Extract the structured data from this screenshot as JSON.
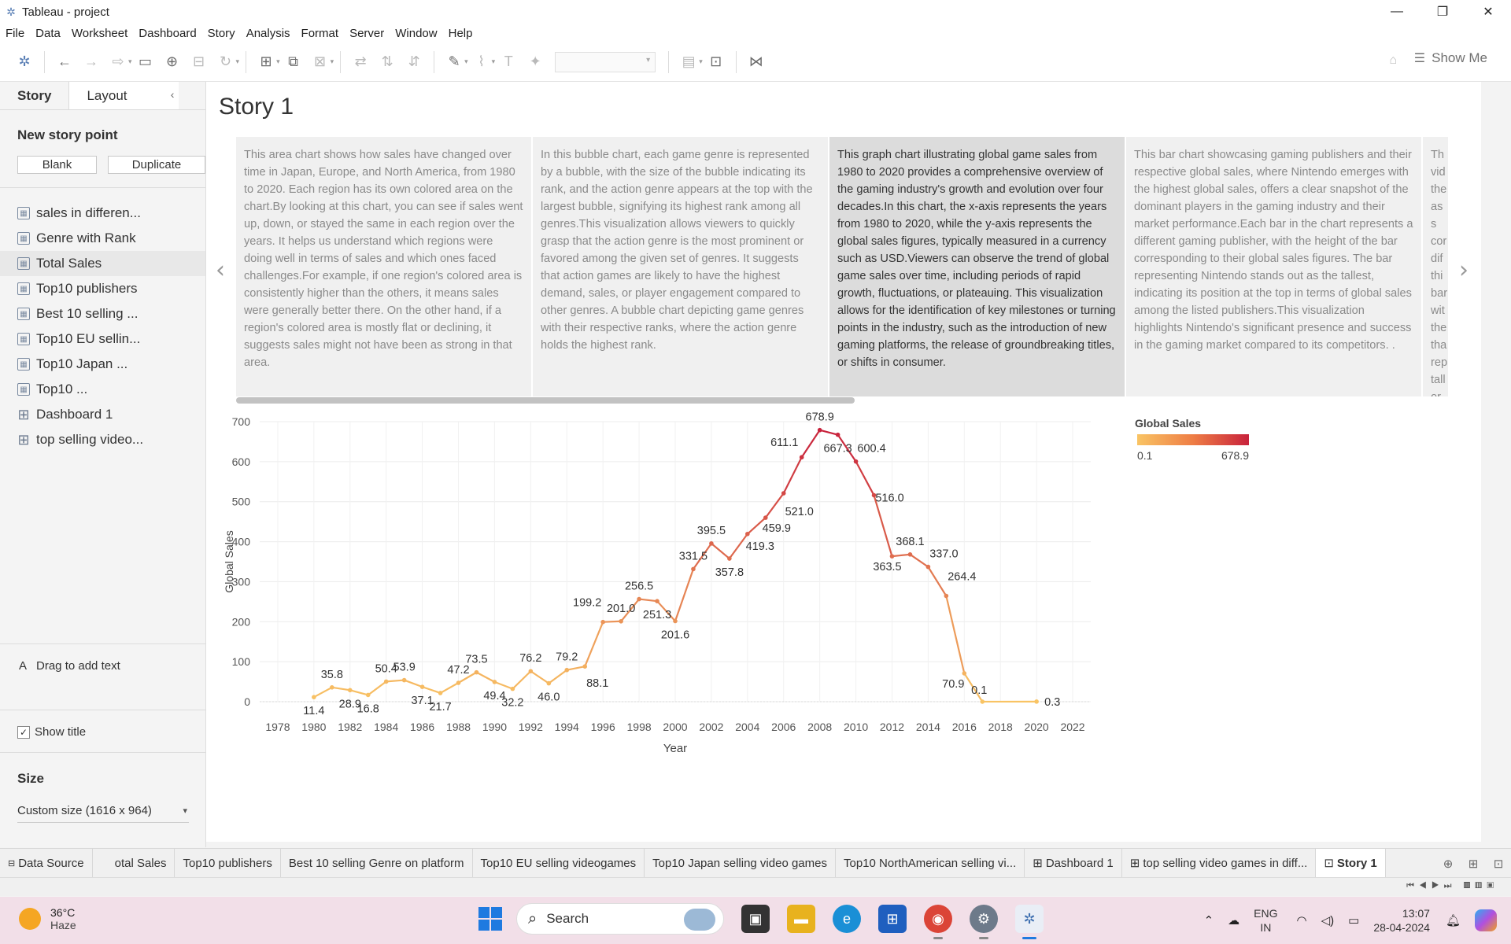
{
  "window": {
    "title": "Tableau - project",
    "controls": [
      "—",
      "❐",
      "✕"
    ]
  },
  "menu": [
    "File",
    "Data",
    "Worksheet",
    "Dashboard",
    "Story",
    "Analysis",
    "Format",
    "Server",
    "Window",
    "Help"
  ],
  "toolbar": {
    "show_me": "Show Me"
  },
  "sidebar": {
    "tab_story": "Story",
    "tab_layout": "Layout",
    "new_story_point": "New story point",
    "blank_btn": "Blank",
    "duplicate_btn": "Duplicate",
    "sheets": [
      {
        "label": "sales in differen...",
        "kind": "sheet"
      },
      {
        "label": "Genre with Rank",
        "kind": "sheet"
      },
      {
        "label": "Total Sales",
        "kind": "sheet"
      },
      {
        "label": "Top10 publishers",
        "kind": "sheet"
      },
      {
        "label": "Best 10 selling ...",
        "kind": "sheet"
      },
      {
        "label": "Top10 EU sellin...",
        "kind": "sheet"
      },
      {
        "label": "Top10 Japan ...",
        "kind": "sheet"
      },
      {
        "label": "Top10 ...",
        "kind": "sheet"
      },
      {
        "label": "Dashboard 1",
        "kind": "dashboard"
      },
      {
        "label": "top selling video...",
        "kind": "dashboard"
      }
    ],
    "drag_text": "Drag to add text",
    "show_title": "Show title",
    "size_label": "Size",
    "size_value": "Custom size (1616 x 964)"
  },
  "story": {
    "title": "Story 1",
    "captions": [
      "This area  chart shows how sales have changed over time in Japan, Europe, and North America, from 1980 to 2020. Each region has its own colored area on the chart.By looking at this chart, you can see if sales went up, down, or stayed the same in each region over the years. It helps us understand which regions were doing well in terms of sales and which ones faced challenges.For example, if one region's colored area is consistently higher than the others, it means sales were generally better there. On the other hand, if a region's colored area is mostly flat or declining, it suggests sales might not have been as strong in that area.",
      "In this bubble chart, each game genre is represented by a bubble, with the size of the bubble indicating its rank, and the action genre appears at the top with the largest bubble, signifying its highest rank among all genres.This visualization allows viewers to quickly grasp that the action genre is the most prominent or favored among the given set of genres. It suggests that action games are likely to have the highest demand, sales, or player engagement compared to other genres. A bubble chart depicting game genres with their respective ranks, where the action genre holds the highest rank.",
      " This graph chart illustrating global game sales from 1980 to 2020 provides a comprehensive overview of the gaming industry's growth and evolution over four decades.In this chart, the x-axis represents the years from 1980 to 2020, while the y-axis represents the global sales figures, typically measured in a currency such as USD.Viewers can observe the trend of global game sales over time, including periods of rapid growth, fluctuations, or plateauing. This visualization allows for the identification of key milestones or turning points in the industry, such as the introduction of new gaming platforms, the release of groundbreaking titles, or shifts in consumer.",
      "This bar chart showcasing gaming publishers and their respective global sales, where Nintendo emerges with the highest global sales, offers a clear snapshot of the dominant players in the gaming industry and their market performance.Each bar in the chart represents a different gaming publisher, with the height of the bar corresponding to their global sales figures. The bar representing Nintendo stands out as the tallest, indicating its position at the top in terms of global sales among the listed publishers.This visualization highlights Nintendo's significant presence and success in the gaming market compared to its competitors. .",
      "Th vid the as s cor dif thi bar wit the tha rep tall or p"
    ]
  },
  "chart_data": {
    "type": "line",
    "xlabel": "Year",
    "ylabel": "Global Sales",
    "xlim": [
      1977,
      2023
    ],
    "ylim": [
      0,
      700
    ],
    "x_ticks": [
      1978,
      1980,
      1982,
      1984,
      1986,
      1988,
      1990,
      1992,
      1994,
      1996,
      1998,
      2000,
      2002,
      2004,
      2006,
      2008,
      2010,
      2012,
      2014,
      2016,
      2018,
      2020,
      2022
    ],
    "y_ticks": [
      0,
      100,
      200,
      300,
      400,
      500,
      600,
      700
    ],
    "grid": true,
    "x": [
      1980,
      1981,
      1982,
      1983,
      1984,
      1985,
      1986,
      1987,
      1988,
      1989,
      1990,
      1991,
      1992,
      1993,
      1994,
      1995,
      1996,
      1997,
      1998,
      1999,
      2000,
      2001,
      2002,
      2003,
      2004,
      2005,
      2006,
      2007,
      2008,
      2009,
      2010,
      2011,
      2012,
      2013,
      2014,
      2015,
      2016,
      2017,
      2020
    ],
    "values": [
      11.4,
      35.8,
      28.9,
      16.8,
      50.4,
      53.9,
      37.1,
      21.7,
      47.2,
      73.5,
      49.4,
      32.2,
      76.2,
      46.0,
      79.2,
      88.1,
      199.2,
      201.0,
      256.5,
      251.3,
      201.6,
      331.5,
      395.5,
      357.8,
      419.3,
      459.9,
      521.0,
      611.1,
      678.9,
      667.3,
      600.4,
      516.0,
      363.5,
      368.1,
      337.0,
      264.4,
      70.9,
      0.1,
      0.3
    ],
    "labels": [
      "11.4",
      "35.8",
      "28.9",
      "16.8",
      "50.4",
      "53.9",
      "37.1",
      "21.7",
      "47.2",
      "73.5",
      "49.4",
      "32.2",
      "76.2",
      "46.0",
      "79.2",
      "88.1",
      "199.2",
      "201.0",
      "256.5",
      "251.3",
      "201.6",
      "331.5",
      "395.5",
      "357.8",
      "419.3",
      "459.9",
      "521.0",
      "611.1",
      "678.9",
      "667.3",
      "600.4",
      "516.0",
      "363.5",
      "368.1",
      "337.0",
      "264.4",
      "70.9",
      "0.1",
      "0.3"
    ],
    "color_legend": {
      "title": "Global Sales",
      "min_label": "0.1",
      "max_label": "678.9",
      "min_color": "#f9c464",
      "max_color": "#c8223c"
    }
  },
  "sheet_tabs": [
    {
      "label": "Data Source",
      "icon": "⊟"
    },
    {
      "label": "otal Sales",
      "icon": ""
    },
    {
      "label": "Top10 publishers",
      "icon": ""
    },
    {
      "label": "Best 10 selling Genre on  platform",
      "icon": ""
    },
    {
      "label": "Top10 EU selling videogames",
      "icon": ""
    },
    {
      "label": "Top10 Japan selling video games",
      "icon": ""
    },
    {
      "label": "Top10 NorthAmerican selling vi...",
      "icon": ""
    },
    {
      "label": "Dashboard 1",
      "icon": "⊞"
    },
    {
      "label": "top selling video games in diff...",
      "icon": "⊞"
    },
    {
      "label": "Story 1",
      "icon": "⊡"
    }
  ],
  "taskbar": {
    "temp": "36°C",
    "weather": "Haze",
    "search_placeholder": "Search",
    "lang1": "ENG",
    "lang2": "IN",
    "time": "13:07",
    "date": "28-04-2024"
  }
}
